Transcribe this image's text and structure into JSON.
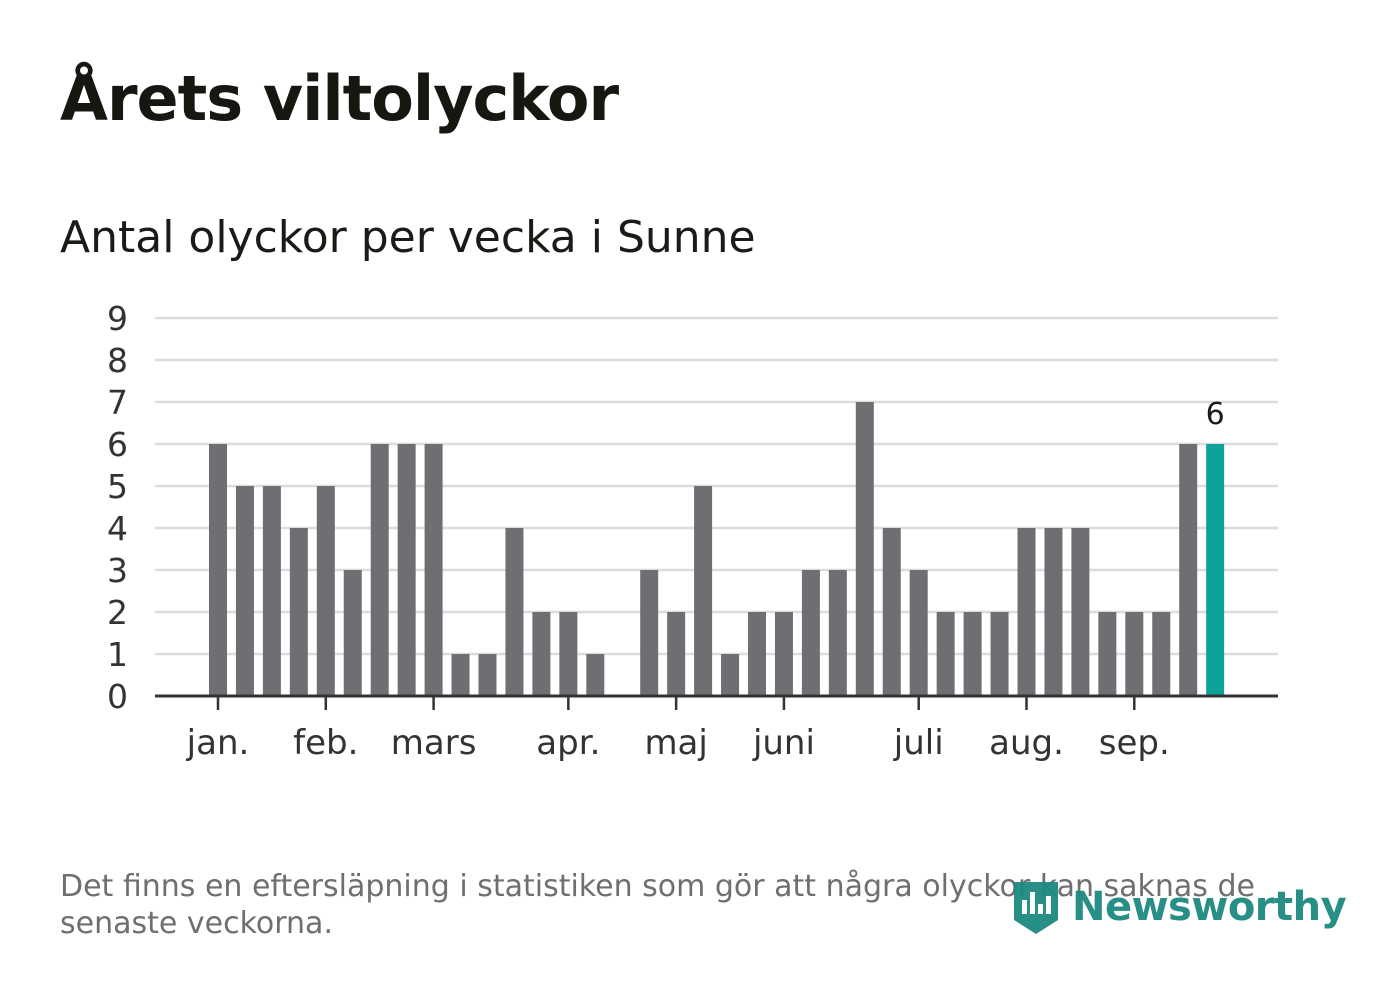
{
  "title": "Årets viltolyckor",
  "subtitle": "Antal olyckor per vecka i Sunne",
  "footnote": "Det finns en eftersläpning i statistiken som gör att några olyckor kan saknas de senaste veckorna.",
  "logo": {
    "text": "Newsworthy",
    "icon": "newsworthy-logo-icon"
  },
  "colors": {
    "bar": "#6f6e73",
    "highlight": "#0ea39a",
    "grid": "#dcdcdc",
    "axis": "#333333",
    "text": "#1a1a17"
  },
  "chart_data": {
    "type": "bar",
    "title": "Antal olyckor per vecka i Sunne",
    "xlabel": "",
    "ylabel": "",
    "ylim": [
      0,
      9
    ],
    "yticks": [
      0,
      1,
      2,
      3,
      4,
      5,
      6,
      7,
      8,
      9
    ],
    "grid": true,
    "weeks": [
      1,
      2,
      3,
      4,
      5,
      6,
      7,
      8,
      9,
      10,
      11,
      12,
      13,
      14,
      15,
      16,
      17,
      18,
      19,
      20,
      21,
      22,
      23,
      24,
      25,
      26,
      27,
      28,
      29,
      30,
      31,
      32,
      33,
      34,
      35,
      36,
      37,
      38
    ],
    "values": [
      6,
      5,
      5,
      4,
      5,
      3,
      6,
      6,
      6,
      1,
      1,
      4,
      2,
      2,
      1,
      0,
      3,
      2,
      5,
      1,
      2,
      2,
      3,
      3,
      7,
      4,
      3,
      2,
      2,
      2,
      4,
      4,
      4,
      2,
      2,
      2,
      6,
      6
    ],
    "highlight_index": 37,
    "highlight_label": "6",
    "month_labels": [
      {
        "label": "jan.",
        "week_index": 0
      },
      {
        "label": "feb.",
        "week_index": 4
      },
      {
        "label": "mars",
        "week_index": 8
      },
      {
        "label": "apr.",
        "week_index": 13
      },
      {
        "label": "maj",
        "week_index": 17
      },
      {
        "label": "juni",
        "week_index": 21
      },
      {
        "label": "juli",
        "week_index": 26
      },
      {
        "label": "aug.",
        "week_index": 30
      },
      {
        "label": "sep.",
        "week_index": 34
      }
    ]
  }
}
